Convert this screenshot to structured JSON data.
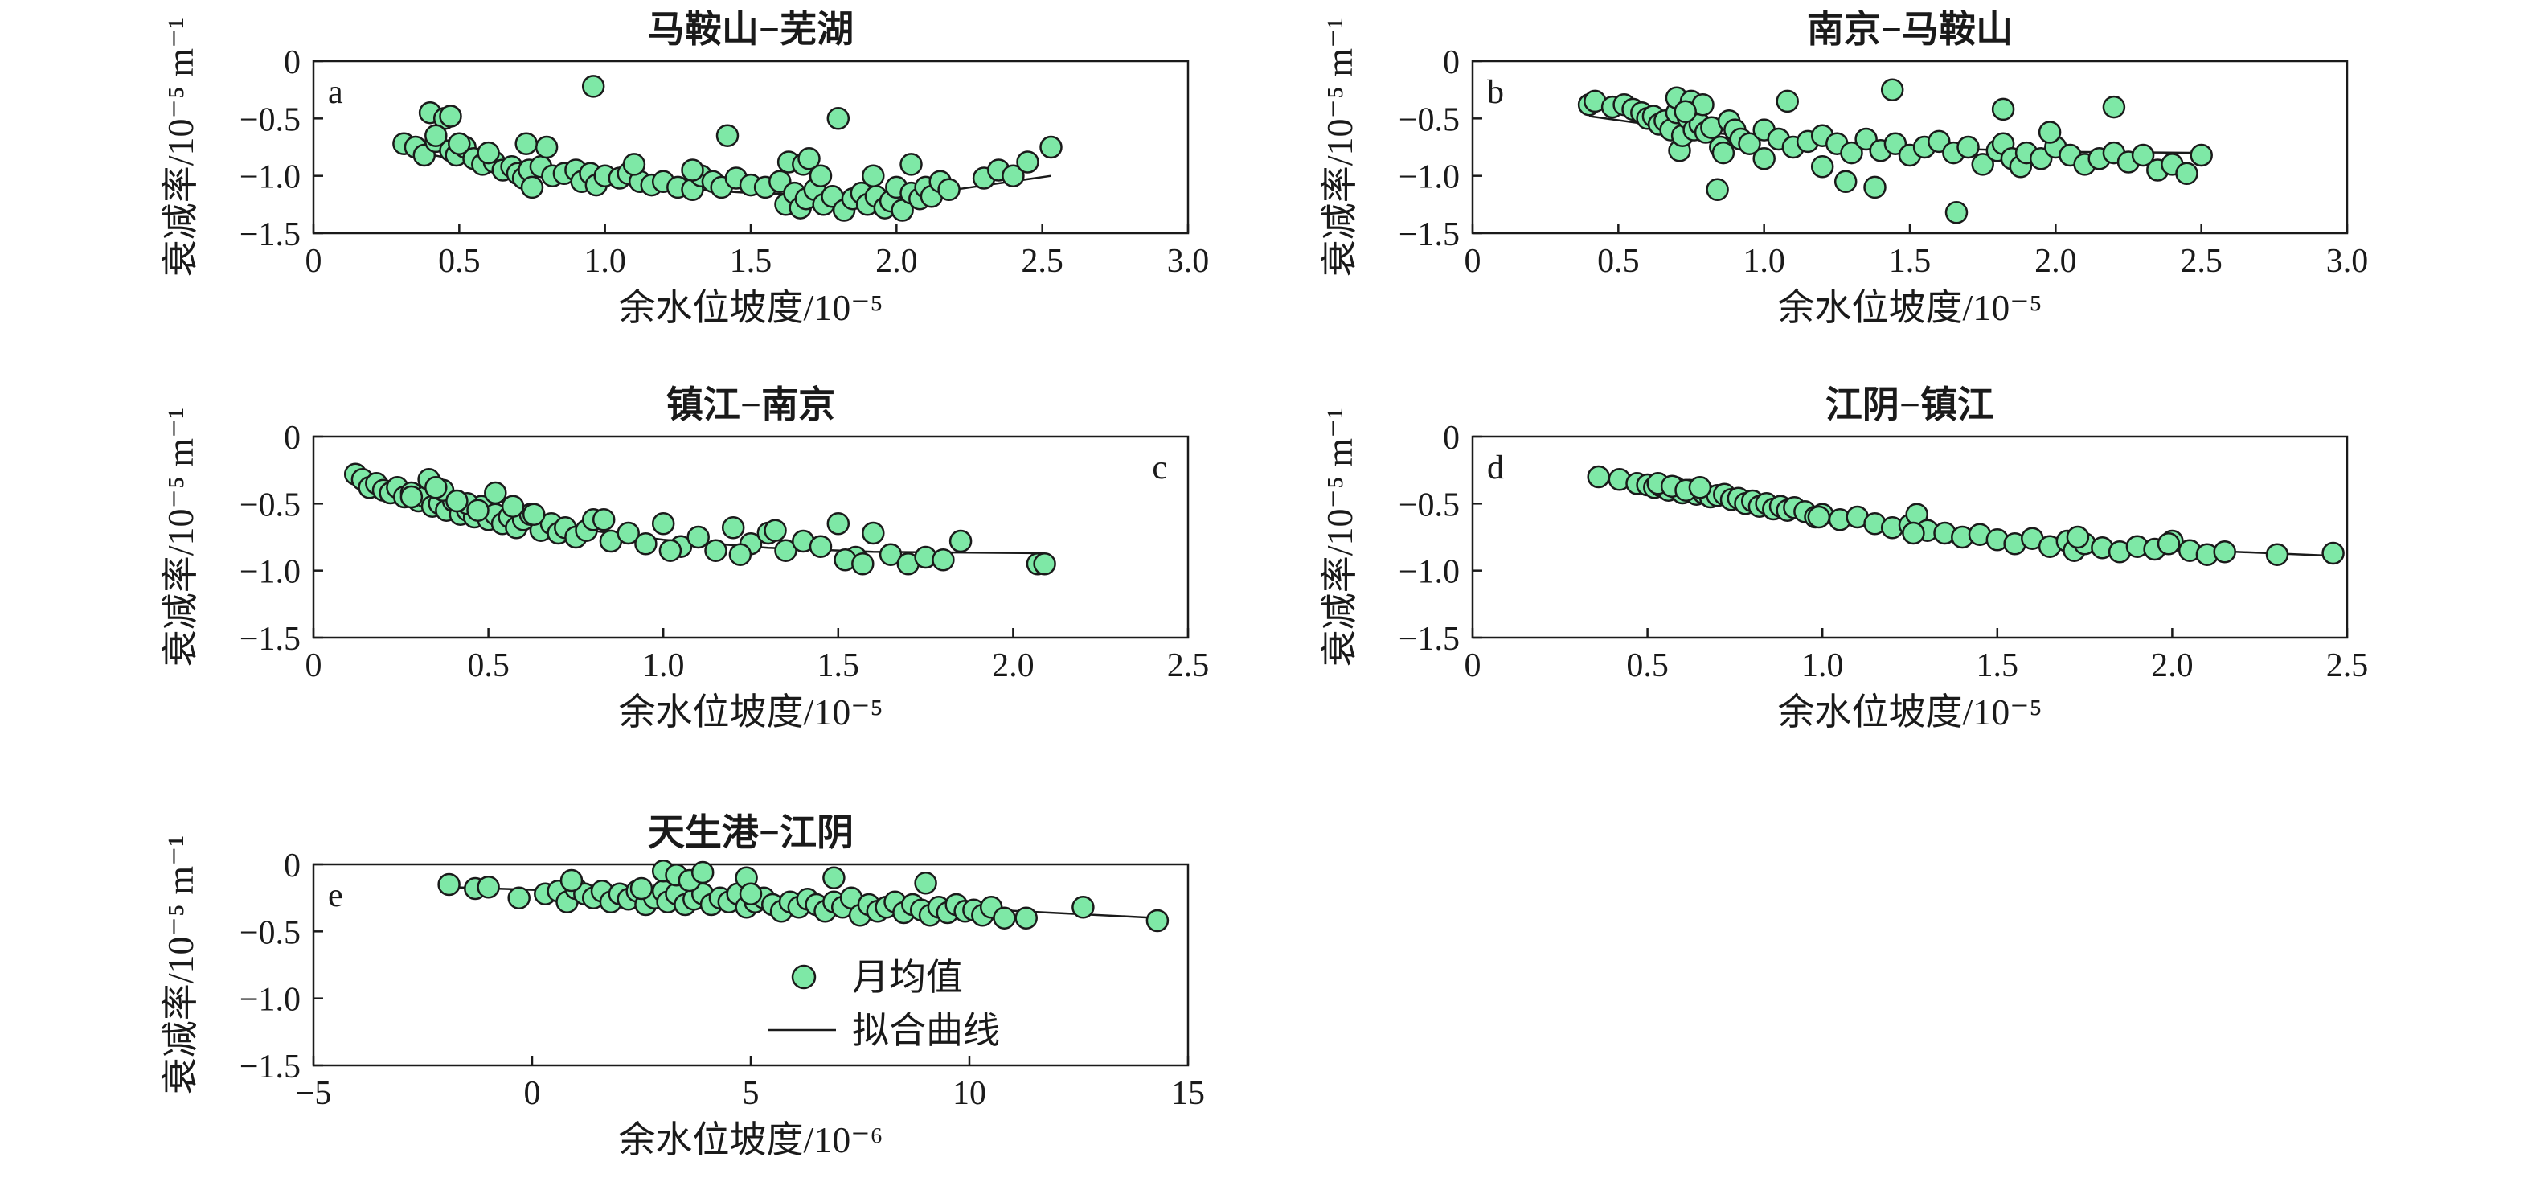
{
  "colors": {
    "marker_fill": "#7ee8a6",
    "marker_stroke": "#1a1a1a",
    "line": "#1a1a1a",
    "axis": "#1a1a1a"
  },
  "legend": {
    "marker_label": "月均值",
    "line_label": "拟合曲线"
  },
  "chart_data": [
    {
      "type": "scatter",
      "panel": "a",
      "title": "马鞍山−芜湖",
      "xlabel": "余水位坡度/10⁻⁵",
      "ylabel": "衰减率/10⁻⁵ m⁻¹",
      "xlim": [
        0,
        3.0
      ],
      "ylim": [
        -1.5,
        0
      ],
      "xticks": [
        "0",
        "0.5",
        "1.0",
        "1.5",
        "2.0",
        "2.5",
        "3.0"
      ],
      "yticks": [
        "0",
        "−0.5",
        "−1.0",
        "−1.5"
      ],
      "series": [
        {
          "x": [
            0.31,
            0.35,
            0.38,
            0.4,
            0.42,
            0.45,
            0.47,
            0.49,
            0.52,
            0.55,
            0.58,
            0.62,
            0.65,
            0.68,
            0.7,
            0.72,
            0.74,
            0.75,
            0.78,
            0.82,
            0.86,
            0.9,
            0.92,
            0.95,
            0.97,
            1.0,
            1.05,
            1.08,
            1.12,
            1.16,
            1.2,
            1.25,
            1.3,
            1.33,
            1.37,
            1.4,
            1.45,
            1.5,
            1.55,
            1.6,
            1.62,
            1.65,
            1.67,
            1.69,
            1.72,
            1.75,
            1.78,
            1.82,
            1.85,
            1.88,
            1.9,
            1.93,
            1.96,
            1.98,
            2.0,
            2.02,
            2.05,
            2.08,
            2.1,
            2.12,
            2.15,
            2.18,
            2.3,
            2.35,
            2.4,
            2.45,
            2.53,
            0.42,
            0.47,
            0.96,
            1.42,
            1.8,
            0.6,
            0.8,
            1.1,
            1.3,
            1.63,
            1.68,
            1.7,
            1.74,
            0.73,
            0.5,
            1.92,
            2.05
          ],
          "y": [
            -0.72,
            -0.75,
            -0.82,
            -0.45,
            -0.7,
            -0.5,
            -0.78,
            -0.82,
            -0.75,
            -0.85,
            -0.9,
            -0.88,
            -0.95,
            -0.92,
            -0.98,
            -1.02,
            -0.95,
            -1.1,
            -0.92,
            -1.0,
            -0.98,
            -0.95,
            -1.05,
            -0.98,
            -1.08,
            -1.0,
            -1.02,
            -0.98,
            -1.05,
            -1.08,
            -1.05,
            -1.1,
            -1.12,
            -1.0,
            -1.05,
            -1.1,
            -1.02,
            -1.08,
            -1.1,
            -1.05,
            -1.25,
            -1.15,
            -1.28,
            -1.2,
            -1.12,
            -1.25,
            -1.18,
            -1.3,
            -1.2,
            -1.15,
            -1.25,
            -1.18,
            -1.28,
            -1.22,
            -1.1,
            -1.3,
            -1.15,
            -1.2,
            -1.1,
            -1.18,
            -1.05,
            -1.12,
            -1.02,
            -0.95,
            -1.0,
            -0.88,
            -0.75,
            -0.65,
            -0.48,
            -0.22,
            -0.65,
            -0.5,
            -0.8,
            -0.75,
            -0.9,
            -0.95,
            -0.88,
            -0.9,
            -0.85,
            -1.0,
            -0.72,
            -0.72,
            -1.0,
            -0.9
          ]
        }
      ],
      "fit_x": [
        0.3,
        0.6,
        0.9,
        1.2,
        1.5,
        1.8,
        2.0,
        2.2,
        2.53
      ],
      "fit_y": [
        -0.76,
        -0.92,
        -1.02,
        -1.1,
        -1.15,
        -1.17,
        -1.16,
        -1.12,
        -1.0
      ]
    },
    {
      "type": "scatter",
      "panel": "b",
      "title": "南京−马鞍山",
      "xlabel": "余水位坡度/10⁻⁵",
      "ylabel": "衰减率/10⁻⁵ m⁻¹",
      "xlim": [
        0,
        3.0
      ],
      "ylim": [
        -1.5,
        0
      ],
      "xticks": [
        "0",
        "0.5",
        "1.0",
        "1.5",
        "2.0",
        "2.5",
        "3.0"
      ],
      "yticks": [
        "0",
        "−0.5",
        "−1.0",
        "−1.5"
      ],
      "series": [
        {
          "x": [
            0.4,
            0.42,
            0.48,
            0.52,
            0.55,
            0.58,
            0.6,
            0.62,
            0.64,
            0.66,
            0.68,
            0.7,
            0.71,
            0.72,
            0.74,
            0.76,
            0.78,
            0.8,
            0.82,
            0.85,
            0.88,
            0.9,
            0.92,
            0.95,
            1.0,
            1.05,
            1.1,
            1.15,
            1.2,
            1.25,
            1.3,
            1.35,
            1.4,
            1.45,
            1.5,
            1.55,
            1.6,
            1.65,
            1.7,
            1.75,
            1.8,
            1.82,
            1.85,
            1.88,
            1.9,
            1.95,
            2.0,
            2.05,
            2.1,
            2.15,
            2.2,
            2.25,
            2.3,
            2.35,
            2.4,
            2.45,
            2.5,
            1.08,
            1.44,
            1.82,
            2.2,
            0.84,
            1.28,
            1.38,
            1.66,
            1.0,
            1.2,
            1.98,
            0.7,
            0.75,
            0.79,
            0.73,
            0.86
          ],
          "y": [
            -0.38,
            -0.35,
            -0.4,
            -0.38,
            -0.42,
            -0.45,
            -0.5,
            -0.48,
            -0.55,
            -0.52,
            -0.6,
            -0.45,
            -0.78,
            -0.65,
            -0.5,
            -0.6,
            -0.55,
            -0.62,
            -0.58,
            -0.75,
            -0.52,
            -0.6,
            -0.68,
            -0.72,
            -0.6,
            -0.68,
            -0.75,
            -0.7,
            -0.65,
            -0.72,
            -0.8,
            -0.68,
            -0.78,
            -0.72,
            -0.82,
            -0.75,
            -0.7,
            -0.8,
            -0.75,
            -0.9,
            -0.78,
            -0.72,
            -0.85,
            -0.92,
            -0.8,
            -0.85,
            -0.75,
            -0.82,
            -0.9,
            -0.85,
            -0.8,
            -0.88,
            -0.82,
            -0.95,
            -0.9,
            -0.98,
            -0.82,
            -0.35,
            -0.25,
            -0.42,
            -0.4,
            -1.12,
            -1.05,
            -1.1,
            -1.32,
            -0.85,
            -0.92,
            -0.62,
            -0.32,
            -0.35,
            -0.38,
            -0.44,
            -0.8
          ]
        }
      ],
      "fit_x": [
        0.4,
        0.8,
        1.2,
        1.6,
        2.0,
        2.5
      ],
      "fit_y": [
        -0.48,
        -0.62,
        -0.71,
        -0.76,
        -0.79,
        -0.8
      ]
    },
    {
      "type": "scatter",
      "panel": "c",
      "title": "镇江−南京",
      "xlabel": "余水位坡度/10⁻⁵",
      "ylabel": "衰减率/10⁻⁵ m⁻¹",
      "xlim": [
        0,
        2.5
      ],
      "ylim": [
        -1.5,
        0
      ],
      "xticks": [
        "0",
        "0.5",
        "1.0",
        "1.5",
        "2.0",
        "2.5"
      ],
      "yticks": [
        "0",
        "−0.5",
        "−1.0",
        "−1.5"
      ],
      "series": [
        {
          "x": [
            0.12,
            0.14,
            0.16,
            0.18,
            0.2,
            0.22,
            0.24,
            0.26,
            0.28,
            0.3,
            0.32,
            0.34,
            0.36,
            0.38,
            0.4,
            0.42,
            0.44,
            0.46,
            0.48,
            0.5,
            0.52,
            0.54,
            0.56,
            0.58,
            0.6,
            0.62,
            0.65,
            0.68,
            0.7,
            0.72,
            0.75,
            0.78,
            0.8,
            0.85,
            0.9,
            0.95,
            1.0,
            1.05,
            1.1,
            1.15,
            1.2,
            1.25,
            1.3,
            1.35,
            1.4,
            1.45,
            1.5,
            1.55,
            1.6,
            1.65,
            1.7,
            1.75,
            1.8,
            1.85,
            2.07,
            2.09,
            0.33,
            0.37,
            0.44,
            0.52,
            0.57,
            0.63,
            0.83,
            1.02,
            1.22,
            1.32,
            1.52,
            1.57,
            0.28,
            0.35,
            0.41,
            0.47
          ],
          "y": [
            -0.28,
            -0.32,
            -0.38,
            -0.35,
            -0.4,
            -0.42,
            -0.38,
            -0.45,
            -0.42,
            -0.48,
            -0.45,
            -0.52,
            -0.5,
            -0.55,
            -0.48,
            -0.58,
            -0.55,
            -0.6,
            -0.52,
            -0.62,
            -0.58,
            -0.65,
            -0.6,
            -0.68,
            -0.62,
            -0.58,
            -0.7,
            -0.65,
            -0.72,
            -0.68,
            -0.75,
            -0.7,
            -0.62,
            -0.78,
            -0.72,
            -0.8,
            -0.65,
            -0.82,
            -0.75,
            -0.85,
            -0.68,
            -0.8,
            -0.72,
            -0.85,
            -0.78,
            -0.82,
            -0.65,
            -0.9,
            -0.72,
            -0.88,
            -0.95,
            -0.9,
            -0.92,
            -0.78,
            -0.95,
            -0.95,
            -0.32,
            -0.4,
            -0.5,
            -0.42,
            -0.52,
            -0.58,
            -0.62,
            -0.85,
            -0.88,
            -0.7,
            -0.92,
            -0.95,
            -0.45,
            -0.38,
            -0.48,
            -0.55
          ]
        }
      ],
      "fit_x": [
        0.12,
        0.4,
        0.7,
        1.0,
        1.3,
        1.6,
        2.09
      ],
      "fit_y": [
        -0.35,
        -0.52,
        -0.67,
        -0.77,
        -0.83,
        -0.86,
        -0.87
      ]
    },
    {
      "type": "scatter",
      "panel": "d",
      "title": "江阴−镇江",
      "xlabel": "余水位坡度/10⁻⁵",
      "ylabel": "衰减率/10⁻⁵ m⁻¹",
      "xlim": [
        0,
        2.5
      ],
      "ylim": [
        -1.5,
        0
      ],
      "xticks": [
        "0",
        "0.5",
        "1.0",
        "1.5",
        "2.0",
        "2.5"
      ],
      "yticks": [
        "0",
        "−0.5",
        "−1.0",
        "−1.5"
      ],
      "series": [
        {
          "x": [
            0.36,
            0.42,
            0.47,
            0.5,
            0.52,
            0.54,
            0.56,
            0.58,
            0.6,
            0.62,
            0.64,
            0.66,
            0.68,
            0.7,
            0.72,
            0.74,
            0.76,
            0.78,
            0.8,
            0.82,
            0.84,
            0.86,
            0.88,
            0.9,
            0.92,
            0.95,
            0.98,
            1.0,
            1.05,
            1.1,
            1.15,
            1.2,
            1.25,
            1.27,
            1.3,
            1.35,
            1.4,
            1.45,
            1.5,
            1.55,
            1.6,
            1.65,
            1.7,
            1.72,
            1.75,
            1.8,
            1.85,
            1.9,
            1.95,
            2.0,
            2.05,
            2.1,
            2.15,
            2.3,
            2.46,
            0.53,
            0.57,
            0.61,
            0.65,
            0.99,
            1.26,
            1.73,
            1.99
          ],
          "y": [
            -0.3,
            -0.32,
            -0.35,
            -0.36,
            -0.38,
            -0.37,
            -0.4,
            -0.38,
            -0.42,
            -0.4,
            -0.43,
            -0.42,
            -0.45,
            -0.44,
            -0.43,
            -0.47,
            -0.46,
            -0.5,
            -0.48,
            -0.52,
            -0.5,
            -0.54,
            -0.52,
            -0.55,
            -0.53,
            -0.56,
            -0.6,
            -0.58,
            -0.62,
            -0.6,
            -0.65,
            -0.68,
            -0.66,
            -0.58,
            -0.7,
            -0.72,
            -0.75,
            -0.73,
            -0.77,
            -0.8,
            -0.76,
            -0.82,
            -0.78,
            -0.85,
            -0.8,
            -0.83,
            -0.86,
            -0.82,
            -0.84,
            -0.78,
            -0.85,
            -0.88,
            -0.86,
            -0.88,
            -0.87,
            -0.35,
            -0.37,
            -0.4,
            -0.38,
            -0.6,
            -0.72,
            -0.75,
            -0.8
          ]
        }
      ],
      "fit_x": [
        0.36,
        0.8,
        1.2,
        1.6,
        2.0,
        2.46
      ],
      "fit_y": [
        -0.33,
        -0.5,
        -0.65,
        -0.76,
        -0.84,
        -0.89
      ]
    },
    {
      "type": "scatter",
      "panel": "e",
      "title": "天生港−江阴",
      "xlabel": "余水位坡度/10⁻⁶",
      "ylabel": "衰减率/10⁻⁵ m⁻¹",
      "xlim": [
        -5,
        15
      ],
      "ylim": [
        -1.5,
        0
      ],
      "xticks": [
        "−5",
        "0",
        "5",
        "10",
        "15"
      ],
      "yticks": [
        "0",
        "−0.5",
        "−1.0",
        "−1.5"
      ],
      "legend_position": "bottom-right",
      "series": [
        {
          "x": [
            -1.9,
            -1.3,
            -1.0,
            -0.3,
            0.3,
            0.6,
            0.8,
            1.0,
            1.2,
            1.4,
            1.6,
            1.8,
            2.0,
            2.2,
            2.4,
            2.6,
            2.8,
            3.0,
            3.1,
            3.3,
            3.5,
            3.7,
            3.9,
            4.1,
            4.3,
            4.5,
            4.7,
            4.9,
            5.1,
            5.3,
            5.5,
            5.7,
            5.9,
            6.1,
            6.3,
            6.5,
            6.7,
            6.9,
            7.1,
            7.3,
            7.5,
            7.7,
            7.9,
            8.1,
            8.3,
            8.5,
            8.7,
            8.9,
            9.1,
            9.3,
            9.5,
            9.7,
            9.9,
            10.1,
            10.3,
            10.5,
            10.8,
            11.3,
            12.6,
            14.3,
            3.0,
            3.3,
            3.6,
            3.9,
            4.9,
            6.9,
            9.0,
            0.9,
            2.5,
            5.0
          ],
          "y": [
            -0.15,
            -0.18,
            -0.17,
            -0.25,
            -0.22,
            -0.2,
            -0.28,
            -0.18,
            -0.22,
            -0.25,
            -0.2,
            -0.28,
            -0.22,
            -0.26,
            -0.2,
            -0.3,
            -0.25,
            -0.2,
            -0.28,
            -0.22,
            -0.3,
            -0.26,
            -0.22,
            -0.3,
            -0.25,
            -0.28,
            -0.22,
            -0.32,
            -0.28,
            -0.25,
            -0.3,
            -0.35,
            -0.28,
            -0.32,
            -0.26,
            -0.3,
            -0.35,
            -0.28,
            -0.32,
            -0.25,
            -0.38,
            -0.3,
            -0.35,
            -0.32,
            -0.28,
            -0.36,
            -0.3,
            -0.34,
            -0.38,
            -0.32,
            -0.36,
            -0.3,
            -0.35,
            -0.34,
            -0.38,
            -0.32,
            -0.4,
            -0.4,
            -0.32,
            -0.42,
            -0.05,
            -0.08,
            -0.12,
            -0.06,
            -0.1,
            -0.1,
            -0.14,
            -0.12,
            -0.18,
            -0.22
          ],
          "name": "月均值"
        }
      ],
      "fit_x": [
        -1.9,
        2.0,
        6.0,
        10.0,
        14.3
      ],
      "fit_y": [
        -0.17,
        -0.21,
        -0.27,
        -0.33,
        -0.4
      ]
    }
  ]
}
